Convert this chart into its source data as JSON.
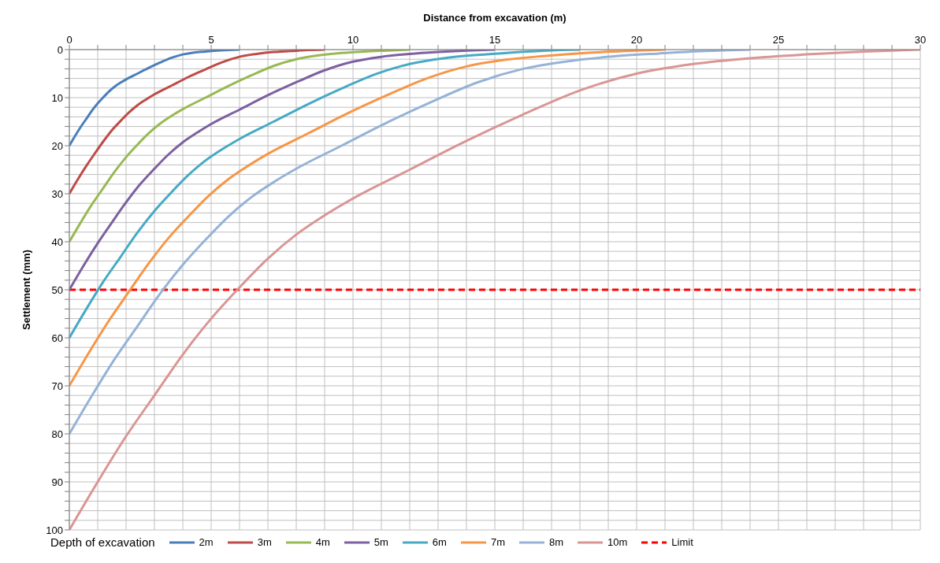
{
  "chart_data": {
    "type": "line",
    "xlabel": "Distance from excavation (m)",
    "ylabel": "Settlement (mm)",
    "legend_title": "Depth of excavation",
    "legend": "bottom",
    "grid": true,
    "marker": "none",
    "line_style": "solid",
    "xlim": [
      0,
      30
    ],
    "ylim": [
      100,
      0
    ],
    "xticks": [
      0,
      {
        "value": 1,
        "label": null
      },
      {
        "value": 2,
        "label": null
      },
      {
        "value": 3,
        "label": null
      },
      {
        "value": 4,
        "label": null
      },
      5,
      {
        "value": 6,
        "label": null
      },
      {
        "value": 7,
        "label": null
      },
      {
        "value": 8,
        "label": null
      },
      {
        "value": 9,
        "label": null
      },
      10,
      {
        "value": 11,
        "label": null
      },
      {
        "value": 12,
        "label": null
      },
      {
        "value": 13,
        "label": null
      },
      {
        "value": 14,
        "label": null
      },
      15,
      {
        "value": 16,
        "label": null
      },
      {
        "value": 17,
        "label": null
      },
      {
        "value": 18,
        "label": null
      },
      {
        "value": 19,
        "label": null
      },
      20,
      {
        "value": 21,
        "label": null
      },
      {
        "value": 22,
        "label": null
      },
      {
        "value": 23,
        "label": null
      },
      {
        "value": 24,
        "label": null
      },
      25,
      {
        "value": 26,
        "label": null
      },
      {
        "value": 27,
        "label": null
      },
      {
        "value": 28,
        "label": null
      },
      {
        "value": 29,
        "label": null
      },
      30
    ],
    "yticks": [
      0,
      {
        "value": 2,
        "label": null
      },
      {
        "value": 4,
        "label": null
      },
      {
        "value": 6,
        "label": null
      },
      {
        "value": 8,
        "label": null
      },
      10,
      {
        "value": 12,
        "label": null
      },
      {
        "value": 14,
        "label": null
      },
      {
        "value": 16,
        "label": null
      },
      {
        "value": 18,
        "label": null
      },
      20,
      {
        "value": 22,
        "label": null
      },
      {
        "value": 24,
        "label": null
      },
      {
        "value": 26,
        "label": null
      },
      {
        "value": 28,
        "label": null
      },
      30,
      {
        "value": 32,
        "label": null
      },
      {
        "value": 34,
        "label": null
      },
      {
        "value": 36,
        "label": null
      },
      {
        "value": 38,
        "label": null
      },
      40,
      {
        "value": 42,
        "label": null
      },
      {
        "value": 44,
        "label": null
      },
      {
        "value": 46,
        "label": null
      },
      {
        "value": 48,
        "label": null
      },
      50,
      {
        "value": 52,
        "label": null
      },
      {
        "value": 54,
        "label": null
      },
      {
        "value": 56,
        "label": null
      },
      {
        "value": 58,
        "label": null
      },
      60,
      {
        "value": 62,
        "label": null
      },
      {
        "value": 64,
        "label": null
      },
      {
        "value": 66,
        "label": null
      },
      {
        "value": 68,
        "label": null
      },
      70,
      {
        "value": 72,
        "label": null
      },
      {
        "value": 74,
        "label": null
      },
      {
        "value": 76,
        "label": null
      },
      {
        "value": 78,
        "label": null
      },
      80,
      {
        "value": 82,
        "label": null
      },
      {
        "value": 84,
        "label": null
      },
      {
        "value": 86,
        "label": null
      },
      {
        "value": 88,
        "label": null
      },
      90,
      {
        "value": 92,
        "label": null
      },
      {
        "value": 94,
        "label": null
      },
      {
        "value": 96,
        "label": null
      },
      {
        "value": 98,
        "label": null
      },
      100
    ],
    "series": [
      {
        "name": "2m",
        "color": "#4a7ebb",
        "x": [
          0,
          0.2,
          0.4,
          0.6,
          0.8,
          1,
          1.2,
          1.4,
          1.6,
          1.8,
          2,
          2.4,
          2.8,
          3.2,
          3.6,
          4,
          4.4,
          4.8,
          5.2,
          5.6,
          6
        ],
        "values": [
          20,
          18,
          16.1,
          14.4,
          12.7,
          11.2,
          9.9,
          8.7,
          7.7,
          6.9,
          6.2,
          5,
          3.8,
          2.7,
          1.7,
          1,
          0.6,
          0.4,
          0.2,
          0.1,
          0
        ]
      },
      {
        "name": "3m",
        "color": "#be4b48",
        "x": [
          0,
          0.3,
          0.6,
          0.9,
          1.2,
          1.5,
          1.8,
          2.1,
          2.4,
          2.7,
          3,
          3.6,
          4.2,
          4.8,
          5.4,
          6,
          6.6,
          7.2,
          7.8,
          8.4,
          9
        ],
        "values": [
          30,
          27,
          24.2,
          21.6,
          19.1,
          16.8,
          14.9,
          13.1,
          11.6,
          10.4,
          9.3,
          7.5,
          5.7,
          4.1,
          2.6,
          1.5,
          0.9,
          0.5,
          0.3,
          0.1,
          0
        ]
      },
      {
        "name": "4m",
        "color": "#98b954",
        "x": [
          0,
          0.4,
          0.8,
          1.2,
          1.6,
          2,
          2.4,
          2.8,
          3.2,
          3.6,
          4,
          4.8,
          5.6,
          6.4,
          7.2,
          8,
          8.8,
          9.6,
          10.4,
          11.2,
          12
        ],
        "values": [
          40,
          36,
          32.2,
          28.8,
          25.4,
          22.4,
          19.8,
          17.4,
          15.4,
          13.8,
          12.4,
          10,
          7.6,
          5.4,
          3.4,
          2,
          1.2,
          0.7,
          0.4,
          0.2,
          0
        ]
      },
      {
        "name": "5m",
        "color": "#7d60a0",
        "x": [
          0,
          0.5,
          1,
          1.5,
          2,
          2.5,
          3,
          3.5,
          4,
          4.5,
          5,
          6,
          7,
          8,
          9,
          10,
          11,
          12,
          13,
          14,
          15
        ],
        "values": [
          50,
          45,
          40.3,
          36,
          31.8,
          28,
          24.8,
          21.8,
          19.3,
          17.3,
          15.5,
          12.5,
          9.5,
          6.8,
          4.3,
          2.5,
          1.5,
          0.9,
          0.5,
          0.2,
          0
        ]
      },
      {
        "name": "6m",
        "color": "#46aac5",
        "x": [
          0,
          0.6,
          1.2,
          1.8,
          2.4,
          3,
          3.6,
          4.2,
          4.8,
          5.4,
          6,
          7.2,
          8.4,
          9.6,
          10.8,
          12,
          13.2,
          14.4,
          15.6,
          16.8,
          18
        ],
        "values": [
          60,
          54,
          48.3,
          43.2,
          38.1,
          33.6,
          29.7,
          26.1,
          23.1,
          20.7,
          18.6,
          15,
          11.4,
          8.1,
          5.1,
          3,
          1.8,
          1.1,
          0.6,
          0.2,
          0
        ]
      },
      {
        "name": "7m",
        "color": "#f79646",
        "x": [
          0,
          0.7,
          1.4,
          2.1,
          2.8,
          3.5,
          4.2,
          4.9,
          5.6,
          6.3,
          7,
          8.4,
          9.8,
          11.2,
          12.6,
          14,
          15.4,
          16.8,
          18.2,
          19.6,
          21
        ],
        "values": [
          70,
          63,
          56.4,
          50.4,
          44.5,
          39.2,
          34.7,
          30.5,
          27,
          24.2,
          21.7,
          17.5,
          13.3,
          9.5,
          6,
          3.5,
          2.1,
          1.3,
          0.7,
          0.3,
          0
        ]
      },
      {
        "name": "8m",
        "color": "#95b3d7",
        "x": [
          0,
          0.8,
          1.6,
          2.4,
          3.2,
          4,
          4.8,
          5.6,
          6.4,
          7.2,
          8,
          9.6,
          11.2,
          12.8,
          14.4,
          16,
          17.6,
          19.2,
          20.8,
          22.4,
          24
        ],
        "values": [
          80,
          72,
          64.4,
          57.6,
          50.8,
          44.8,
          39.6,
          34.8,
          30.8,
          27.6,
          24.8,
          20,
          15.2,
          10.8,
          6.8,
          4,
          2.4,
          1.4,
          0.8,
          0.3,
          0
        ]
      },
      {
        "name": "10m",
        "color": "#d99694",
        "x": [
          0,
          1,
          2,
          3,
          4,
          5,
          6,
          7,
          8,
          9,
          10,
          12,
          14,
          16,
          18,
          20,
          22,
          24,
          26,
          28,
          30
        ],
        "values": [
          100,
          90,
          80.5,
          72,
          63.5,
          56,
          49.5,
          43.5,
          38.5,
          34.5,
          31,
          25,
          19,
          13.5,
          8.5,
          5,
          3,
          1.8,
          1,
          0.4,
          0
        ]
      }
    ],
    "ref_lines": [
      {
        "axis": "y",
        "value": 50,
        "label": "Limit",
        "color": "#ff0000",
        "line_style": "dashed"
      }
    ]
  }
}
